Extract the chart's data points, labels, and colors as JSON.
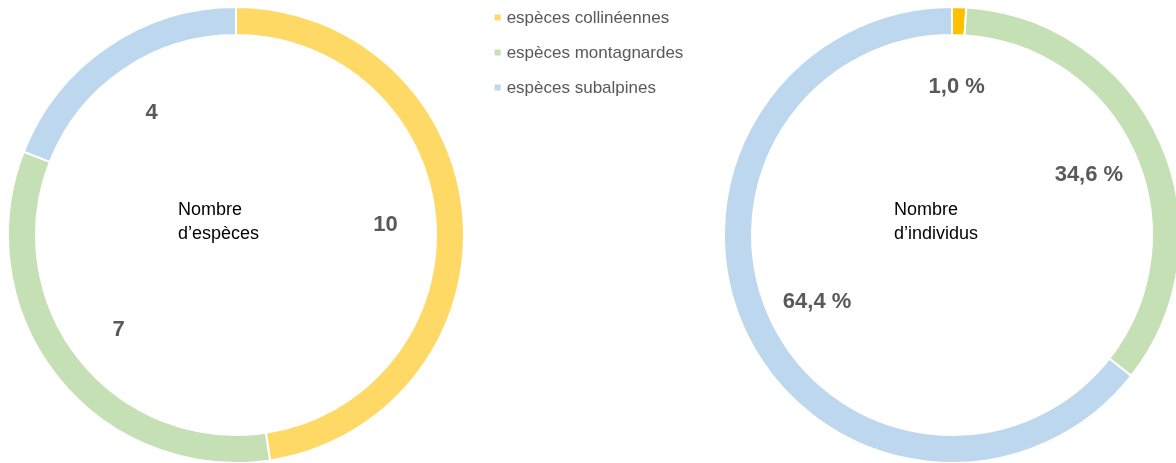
{
  "chart_data": {
    "type": "donut",
    "categories": [
      "espèces collinéennes",
      "espèces montagnardes",
      "espèces subalpines"
    ],
    "legend": "top",
    "series": [
      {
        "name": "Nombre d’espèces",
        "values": [
          10,
          7,
          4
        ],
        "colors": [
          "#ffd966",
          "#c5e0b4",
          "#bdd7ee"
        ],
        "value_labels": [
          "10",
          "7",
          "4"
        ]
      },
      {
        "name": "Nombre d’individus",
        "values": [
          1.0,
          34.6,
          64.4
        ],
        "colors": [
          "#ffc000",
          "#c5e0b4",
          "#bdd7ee"
        ],
        "value_labels": [
          "1,0 %",
          "34,6 %",
          "64,4 %"
        ]
      }
    ]
  }
}
